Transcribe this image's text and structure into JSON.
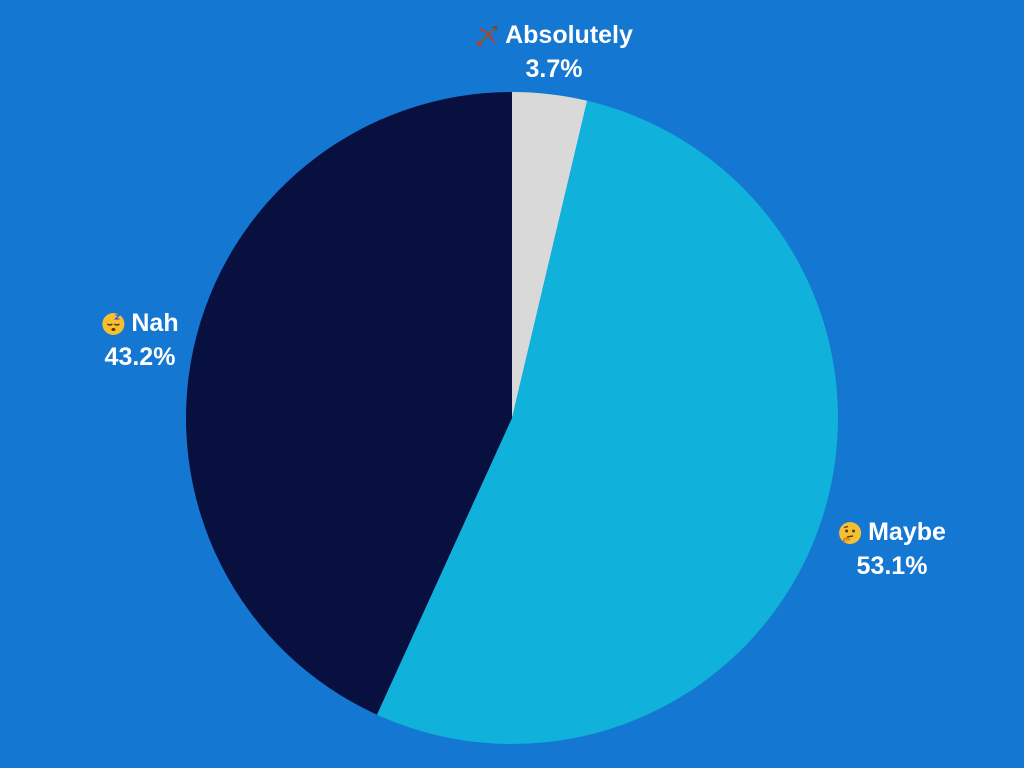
{
  "background_color": "#1477d2",
  "chart_data": {
    "type": "pie",
    "title": "",
    "start_angle_deg": 0,
    "direction": "clockwise",
    "slices": [
      {
        "label": "Absolutely",
        "value": 3.7,
        "value_label": "3.7%",
        "color": "#d9d9d9",
        "icon": "bow-and-arrow-icon"
      },
      {
        "label": "Maybe",
        "value": 53.1,
        "value_label": "53.1%",
        "color": "#10b2dc",
        "icon": "thinking-face-icon"
      },
      {
        "label": "Nah",
        "value": 43.2,
        "value_label": "43.2%",
        "color": "#08103f",
        "icon": "sleeping-face-icon"
      }
    ]
  }
}
